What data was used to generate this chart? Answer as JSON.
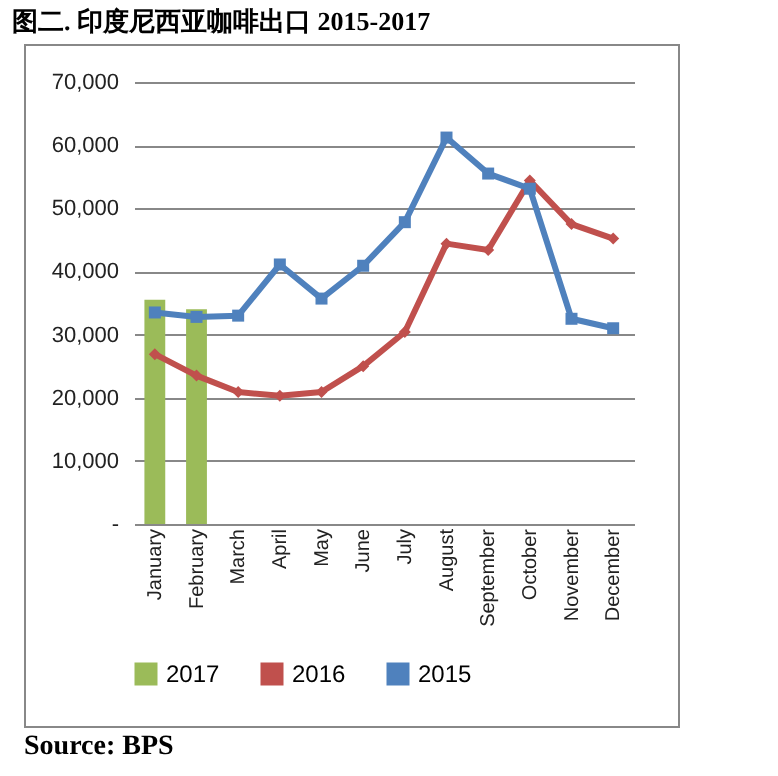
{
  "chart_data": {
    "type": "bar",
    "title": "图二. 印度尼西亚咖啡出口 2015-2017",
    "categories": [
      "January",
      "February",
      "March",
      "April",
      "May",
      "June",
      "July",
      "August",
      "September",
      "October",
      "November",
      "December"
    ],
    "series": [
      {
        "name": "2017",
        "color": "#9bbb59",
        "values": [
          35500,
          34000,
          null,
          null,
          null,
          null,
          null,
          null,
          null,
          null,
          null,
          null
        ]
      },
      {
        "name": "2016",
        "type": "line",
        "color": "#c0504d",
        "marker": "diamond",
        "values": [
          26900,
          23500,
          20900,
          20300,
          20900,
          25000,
          30400,
          44400,
          43400,
          54400,
          47500,
          45200
        ]
      },
      {
        "name": "2015",
        "type": "line",
        "color": "#4f81bd",
        "marker": "square",
        "values": [
          33500,
          32800,
          33000,
          41100,
          35700,
          40900,
          47800,
          61200,
          55500,
          53100,
          32500,
          31000
        ]
      }
    ],
    "ylim": [
      0,
      70000
    ],
    "yticks": [
      {
        "value": 0,
        "label": "-"
      },
      {
        "value": 10000,
        "label": "10,000"
      },
      {
        "value": 20000,
        "label": "20,000"
      },
      {
        "value": 30000,
        "label": "30,000"
      },
      {
        "value": 40000,
        "label": "40,000"
      },
      {
        "value": 50000,
        "label": "50,000"
      },
      {
        "value": 60000,
        "label": "60,000"
      },
      {
        "value": 70000,
        "label": "70,000"
      }
    ],
    "grid": "y",
    "legend": "bottom",
    "annotations": [
      "Source: BPS"
    ]
  }
}
